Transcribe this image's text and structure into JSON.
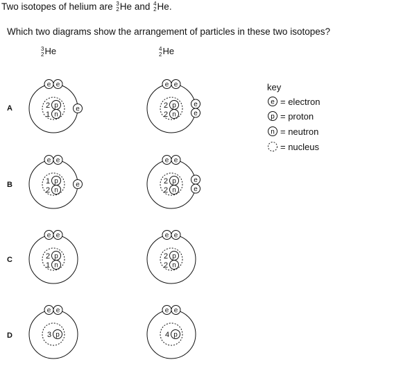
{
  "question": {
    "line1_pre": "Two isotopes of helium are ",
    "line1_mid": " and ",
    "line1_post": ".",
    "isotope1": {
      "symbol": "He",
      "mass": "3",
      "atomic": "2"
    },
    "isotope2": {
      "symbol": "He",
      "mass": "4",
      "atomic": "2"
    },
    "line2": "Which two diagrams show the arrangement of particles in these two isotopes?"
  },
  "columns": [
    {
      "symbol": "He",
      "mass": "3",
      "atomic": "2"
    },
    {
      "symbol": "He",
      "mass": "4",
      "atomic": "2"
    }
  ],
  "rows": [
    {
      "label": "A",
      "left": {
        "top_electrons": 2,
        "side_electrons": 1,
        "protons": "2",
        "neutrons": "1"
      },
      "right": {
        "top_electrons": 2,
        "side_electrons": 2,
        "protons": "2",
        "neutrons": "2"
      }
    },
    {
      "label": "B",
      "left": {
        "top_electrons": 2,
        "side_electrons": 1,
        "protons": "1",
        "neutrons": "2"
      },
      "right": {
        "top_electrons": 2,
        "side_electrons": 2,
        "protons": "2",
        "neutrons": "2"
      }
    },
    {
      "label": "C",
      "left": {
        "top_electrons": 2,
        "side_electrons": 0,
        "protons": "2",
        "neutrons": "1"
      },
      "right": {
        "top_electrons": 2,
        "side_electrons": 0,
        "protons": "2",
        "neutrons": "2"
      }
    },
    {
      "label": "D",
      "left": {
        "top_electrons": 2,
        "side_electrons": 0,
        "protons": "3",
        "neutrons": null
      },
      "right": {
        "top_electrons": 2,
        "side_electrons": 0,
        "protons": "4",
        "neutrons": null
      }
    }
  ],
  "particle_letters": {
    "electron": "e",
    "proton": "p",
    "neutron": "n"
  },
  "key": {
    "title": "key",
    "electron": "= electron",
    "proton": "= proton",
    "neutron": "= neutron",
    "nucleus": "= nucleus"
  }
}
